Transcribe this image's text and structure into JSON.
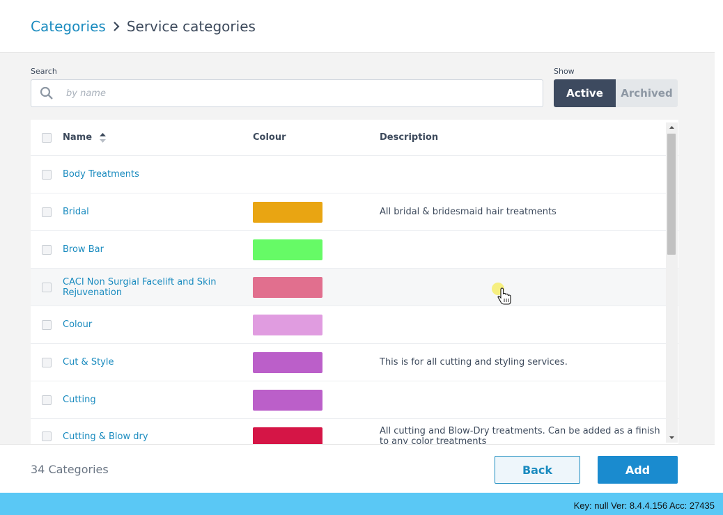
{
  "breadcrumb": {
    "parent": "Categories",
    "current": "Service categories"
  },
  "search": {
    "label": "Search",
    "placeholder": "by name",
    "value": ""
  },
  "show": {
    "label": "Show",
    "options": [
      "Active",
      "Archived"
    ],
    "selected": "Active"
  },
  "table": {
    "columns": {
      "name": "Name",
      "colour": "Colour",
      "description": "Description"
    },
    "sort": {
      "column": "Name",
      "direction": "ascending"
    },
    "rows": [
      {
        "name": "Body Treatments",
        "colour": "",
        "description": ""
      },
      {
        "name": "Bridal",
        "colour": "#e9a512",
        "description": "All bridal & bridesmaid hair treatments"
      },
      {
        "name": "Brow Bar",
        "colour": "#66fa66",
        "description": ""
      },
      {
        "name": "CACI Non Surgial Facelift and Skin Rejuvenation",
        "colour": "#e16f8e",
        "description": ""
      },
      {
        "name": "Colour",
        "colour": "#e09ce0",
        "description": ""
      },
      {
        "name": "Cut & Style",
        "colour": "#bb5fc9",
        "description": "This is for all cutting and styling services."
      },
      {
        "name": "Cutting",
        "colour": "#bb5fc9",
        "description": ""
      },
      {
        "name": "Cutting & Blow dry",
        "colour": "#d51546",
        "description": "All cutting and Blow-Dry treatments. Can be added as a finish to any color treatments"
      }
    ]
  },
  "footer": {
    "count": "34 Categories",
    "back_label": "Back",
    "add_label": "Add"
  },
  "statusbar": {
    "text": "Key: null Ver: 8.4.4.156 Acc: 27435"
  },
  "colors": {
    "accent": "#1a8bbf",
    "toggle_active": "#3d4a5f",
    "statusbar": "#5ac8f5"
  }
}
